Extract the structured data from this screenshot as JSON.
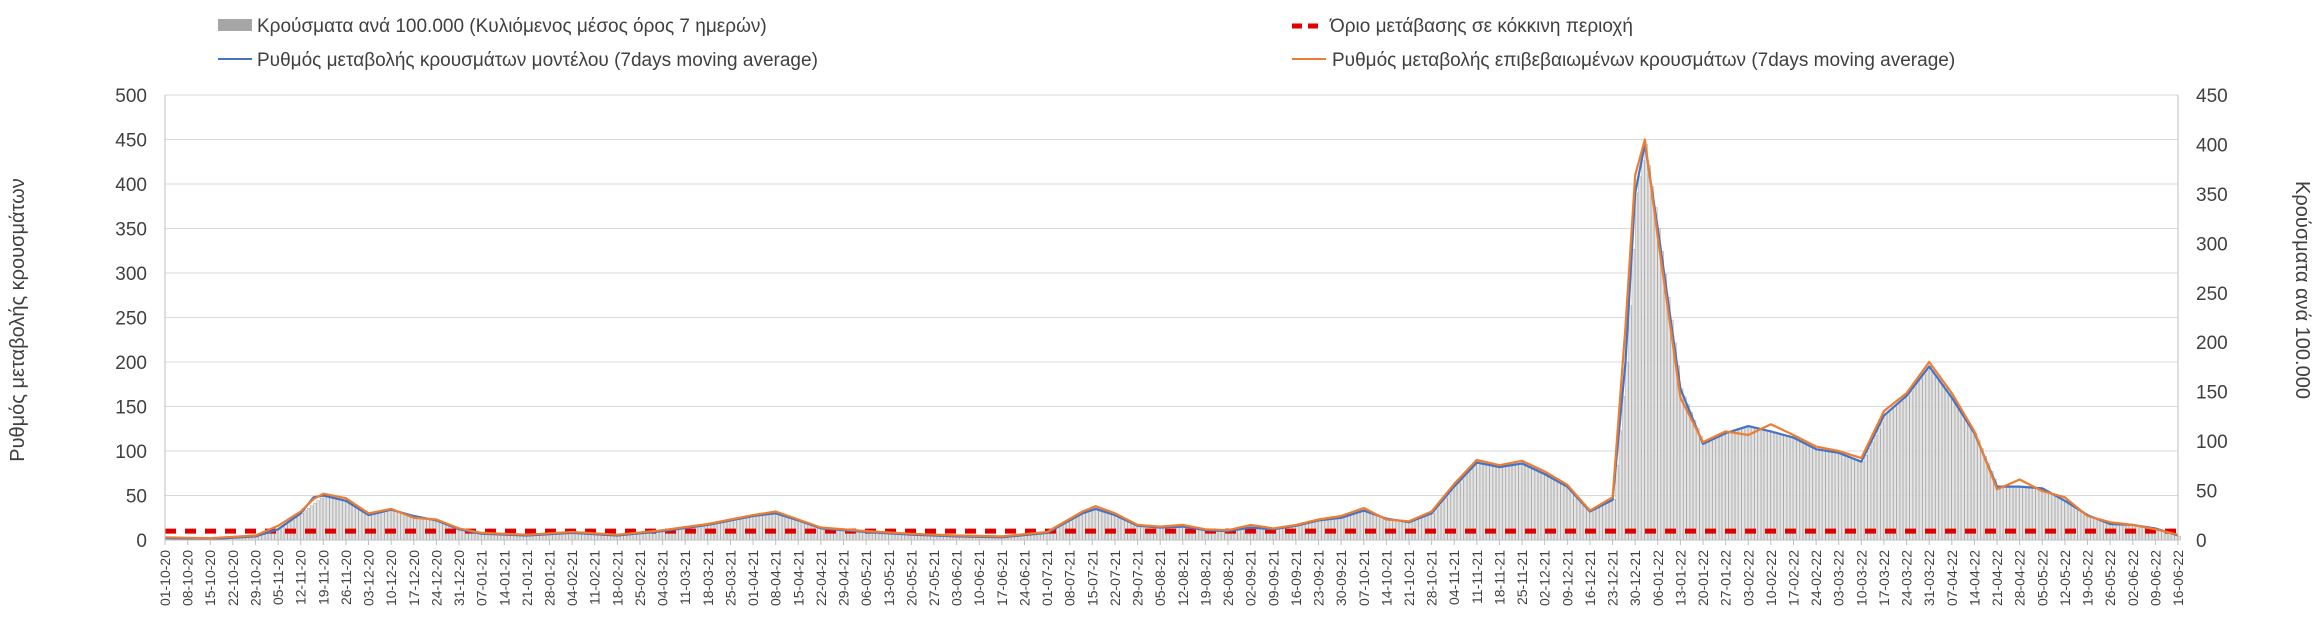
{
  "chart_data": {
    "type": "bar",
    "title": "",
    "ylabel": "Ρυθμός μεταβολής κρουσμάτων",
    "y2label": "Κρούσματα ανά 100.000",
    "ylim": [
      0,
      500
    ],
    "y2lim": [
      0,
      450
    ],
    "y_ticks": [
      "0",
      "50",
      "100",
      "150",
      "200",
      "250",
      "300",
      "350",
      "400",
      "450",
      "500"
    ],
    "y2_ticks": [
      "0",
      "50",
      "100",
      "150",
      "200",
      "250",
      "300",
      "350",
      "400",
      "450"
    ],
    "grid": "horizontal",
    "legend_position": "top",
    "legend": [
      {
        "key": "bars",
        "label": "Κρούσματα ανά 100.000 (Κυλιόμενος μέσος όρος 7 ημερών)",
        "color": "#a6a6a6"
      },
      {
        "key": "threshold",
        "label": "Όριο μετάβασης σε κόκκινη περιοχή",
        "color": "#e00000"
      },
      {
        "key": "model",
        "label": "Ρυθμός μεταβολής κρουσμάτων μοντέλου (7days moving average)",
        "color": "#4472c4"
      },
      {
        "key": "confirmed",
        "label": "Ρυθμός μεταβολής επιβεβαιωμένων κρουσμάτων (7days moving average)",
        "color": "#ed7d31"
      }
    ],
    "x_start": "2020-10-01",
    "x_end": "2022-06-16",
    "categories": [
      "01-10-20",
      "08-10-20",
      "15-10-20",
      "22-10-20",
      "29-10-20",
      "05-11-20",
      "12-11-20",
      "19-11-20",
      "26-11-20",
      "03-12-20",
      "10-12-20",
      "17-12-20",
      "24-12-20",
      "31-12-20",
      "07-01-21",
      "14-01-21",
      "21-01-21",
      "28-01-21",
      "04-02-21",
      "11-02-21",
      "18-02-21",
      "25-02-21",
      "04-03-21",
      "11-03-21",
      "18-03-21",
      "25-03-21",
      "01-04-21",
      "08-04-21",
      "15-04-21",
      "22-04-21",
      "29-04-21",
      "06-05-21",
      "13-05-21",
      "20-05-21",
      "27-05-21",
      "03-06-21",
      "10-06-21",
      "17-06-21",
      "24-06-21",
      "01-07-21",
      "08-07-21",
      "15-07-21",
      "22-07-21",
      "29-07-21",
      "05-08-21",
      "12-08-21",
      "19-08-21",
      "26-08-21",
      "02-09-21",
      "09-09-21",
      "16-09-21",
      "23-09-21",
      "30-09-21",
      "07-10-21",
      "14-10-21",
      "21-10-21",
      "28-10-21",
      "04-11-21",
      "11-11-21",
      "18-11-21",
      "25-11-21",
      "02-12-21",
      "09-12-21",
      "16-12-21",
      "23-12-21",
      "30-12-21",
      "06-01-22",
      "13-01-22",
      "20-01-22",
      "27-01-22",
      "03-02-22",
      "10-02-22",
      "17-02-22",
      "24-02-22",
      "03-03-22",
      "10-03-22",
      "17-03-22",
      "24-03-22",
      "31-03-22",
      "07-04-22",
      "14-04-22",
      "21-04-22",
      "28-04-22",
      "05-05-22",
      "12-05-22",
      "19-05-22",
      "26-05-22",
      "02-06-22",
      "09-06-22",
      "16-06-22"
    ],
    "threshold_value": 10,
    "series": [
      {
        "key": "model",
        "name": "Ρυθμός μεταβολής κρουσμάτων μοντέλου (7days moving average)",
        "axis": "left",
        "points": [
          [
            "2020-10-01",
            2
          ],
          [
            "2020-10-15",
            1
          ],
          [
            "2020-10-29",
            4
          ],
          [
            "2020-11-05",
            12
          ],
          [
            "2020-11-12",
            30
          ],
          [
            "2020-11-16",
            48
          ],
          [
            "2020-11-19",
            50
          ],
          [
            "2020-11-26",
            44
          ],
          [
            "2020-12-03",
            28
          ],
          [
            "2020-12-10",
            34
          ],
          [
            "2020-12-17",
            27
          ],
          [
            "2020-12-24",
            22
          ],
          [
            "2020-12-31",
            12
          ],
          [
            "2021-01-07",
            7
          ],
          [
            "2021-01-21",
            5
          ],
          [
            "2021-02-04",
            8
          ],
          [
            "2021-02-18",
            5
          ],
          [
            "2021-03-04",
            10
          ],
          [
            "2021-03-18",
            17
          ],
          [
            "2021-04-01",
            27
          ],
          [
            "2021-04-08",
            30
          ],
          [
            "2021-04-15",
            22
          ],
          [
            "2021-04-22",
            13
          ],
          [
            "2021-05-06",
            9
          ],
          [
            "2021-05-20",
            6
          ],
          [
            "2021-06-03",
            4
          ],
          [
            "2021-06-17",
            3
          ],
          [
            "2021-07-01",
            8
          ],
          [
            "2021-07-12",
            30
          ],
          [
            "2021-07-16",
            35
          ],
          [
            "2021-07-22",
            28
          ],
          [
            "2021-07-29",
            16
          ],
          [
            "2021-08-05",
            14
          ],
          [
            "2021-08-12",
            15
          ],
          [
            "2021-08-19",
            11
          ],
          [
            "2021-08-26",
            10
          ],
          [
            "2021-09-02",
            14
          ],
          [
            "2021-09-09",
            12
          ],
          [
            "2021-09-16",
            16
          ],
          [
            "2021-09-23",
            22
          ],
          [
            "2021-09-30",
            25
          ],
          [
            "2021-10-07",
            33
          ],
          [
            "2021-10-14",
            24
          ],
          [
            "2021-10-21",
            20
          ],
          [
            "2021-10-28",
            30
          ],
          [
            "2021-11-04",
            60
          ],
          [
            "2021-11-11",
            87
          ],
          [
            "2021-11-18",
            82
          ],
          [
            "2021-11-25",
            86
          ],
          [
            "2021-12-02",
            74
          ],
          [
            "2021-12-09",
            60
          ],
          [
            "2021-12-16",
            32
          ],
          [
            "2021-12-23",
            45
          ],
          [
            "2021-12-27",
            200
          ],
          [
            "2021-12-30",
            390
          ],
          [
            "2022-01-02",
            445
          ],
          [
            "2022-01-06",
            350
          ],
          [
            "2022-01-13",
            170
          ],
          [
            "2022-01-20",
            108
          ],
          [
            "2022-01-27",
            120
          ],
          [
            "2022-02-03",
            128
          ],
          [
            "2022-02-10",
            122
          ],
          [
            "2022-02-17",
            115
          ],
          [
            "2022-02-24",
            102
          ],
          [
            "2022-03-03",
            98
          ],
          [
            "2022-03-10",
            88
          ],
          [
            "2022-03-17",
            140
          ],
          [
            "2022-03-24",
            162
          ],
          [
            "2022-03-31",
            195
          ],
          [
            "2022-04-07",
            160
          ],
          [
            "2022-04-14",
            120
          ],
          [
            "2022-04-21",
            60
          ],
          [
            "2022-04-28",
            60
          ],
          [
            "2022-05-05",
            58
          ],
          [
            "2022-05-12",
            44
          ],
          [
            "2022-05-19",
            28
          ],
          [
            "2022-05-26",
            18
          ],
          [
            "2022-06-02",
            17
          ],
          [
            "2022-06-09",
            13
          ],
          [
            "2022-06-16",
            5
          ]
        ]
      },
      {
        "key": "confirmed",
        "name": "Ρυθμός μεταβολής επιβεβαιωμένων κρουσμάτων (7days moving average)",
        "axis": "left",
        "points": [
          [
            "2020-10-01",
            3
          ],
          [
            "2020-10-15",
            2
          ],
          [
            "2020-10-29",
            5
          ],
          [
            "2020-11-05",
            16
          ],
          [
            "2020-11-12",
            32
          ],
          [
            "2020-11-16",
            46
          ],
          [
            "2020-11-19",
            52
          ],
          [
            "2020-11-26",
            47
          ],
          [
            "2020-12-03",
            30
          ],
          [
            "2020-12-10",
            35
          ],
          [
            "2020-12-17",
            25
          ],
          [
            "2020-12-24",
            23
          ],
          [
            "2020-12-31",
            13
          ],
          [
            "2021-01-07",
            8
          ],
          [
            "2021-01-21",
            6
          ],
          [
            "2021-02-04",
            9
          ],
          [
            "2021-02-18",
            6
          ],
          [
            "2021-03-04",
            11
          ],
          [
            "2021-03-18",
            18
          ],
          [
            "2021-04-01",
            28
          ],
          [
            "2021-04-08",
            32
          ],
          [
            "2021-04-15",
            23
          ],
          [
            "2021-04-22",
            14
          ],
          [
            "2021-05-06",
            10
          ],
          [
            "2021-05-20",
            7
          ],
          [
            "2021-06-03",
            5
          ],
          [
            "2021-06-17",
            4
          ],
          [
            "2021-07-01",
            9
          ],
          [
            "2021-07-12",
            32
          ],
          [
            "2021-07-16",
            38
          ],
          [
            "2021-07-22",
            30
          ],
          [
            "2021-07-29",
            17
          ],
          [
            "2021-08-05",
            15
          ],
          [
            "2021-08-12",
            17
          ],
          [
            "2021-08-19",
            12
          ],
          [
            "2021-08-26",
            11
          ],
          [
            "2021-09-02",
            17
          ],
          [
            "2021-09-09",
            13
          ],
          [
            "2021-09-16",
            17
          ],
          [
            "2021-09-23",
            23
          ],
          [
            "2021-09-30",
            27
          ],
          [
            "2021-10-07",
            36
          ],
          [
            "2021-10-14",
            23
          ],
          [
            "2021-10-21",
            21
          ],
          [
            "2021-10-28",
            32
          ],
          [
            "2021-11-04",
            63
          ],
          [
            "2021-11-11",
            90
          ],
          [
            "2021-11-18",
            84
          ],
          [
            "2021-11-25",
            89
          ],
          [
            "2021-12-02",
            77
          ],
          [
            "2021-12-09",
            62
          ],
          [
            "2021-12-16",
            33
          ],
          [
            "2021-12-23",
            48
          ],
          [
            "2021-12-27",
            240
          ],
          [
            "2021-12-30",
            410
          ],
          [
            "2022-01-02",
            450
          ],
          [
            "2022-01-06",
            340
          ],
          [
            "2022-01-13",
            160
          ],
          [
            "2022-01-20",
            110
          ],
          [
            "2022-01-27",
            122
          ],
          [
            "2022-02-03",
            118
          ],
          [
            "2022-02-10",
            130
          ],
          [
            "2022-02-17",
            118
          ],
          [
            "2022-02-24",
            105
          ],
          [
            "2022-03-03",
            100
          ],
          [
            "2022-03-10",
            92
          ],
          [
            "2022-03-17",
            145
          ],
          [
            "2022-03-24",
            165
          ],
          [
            "2022-03-31",
            200
          ],
          [
            "2022-04-07",
            165
          ],
          [
            "2022-04-14",
            122
          ],
          [
            "2022-04-21",
            57
          ],
          [
            "2022-04-28",
            68
          ],
          [
            "2022-05-05",
            55
          ],
          [
            "2022-05-12",
            48
          ],
          [
            "2022-05-19",
            27
          ],
          [
            "2022-05-26",
            20
          ],
          [
            "2022-06-02",
            17
          ],
          [
            "2022-06-09",
            12
          ],
          [
            "2022-06-16",
            6
          ]
        ]
      },
      {
        "key": "bars",
        "name": "Κρούσματα ανά 100.000 (Κυλιόμενος μέσος όρος 7 ημερών)",
        "axis": "right",
        "points": [
          [
            "2020-10-01",
            2
          ],
          [
            "2020-10-15",
            1
          ],
          [
            "2020-10-29",
            3
          ],
          [
            "2020-11-05",
            11
          ],
          [
            "2020-11-12",
            27
          ],
          [
            "2020-11-19",
            45
          ],
          [
            "2020-11-26",
            40
          ],
          [
            "2020-12-03",
            25
          ],
          [
            "2020-12-10",
            31
          ],
          [
            "2020-12-17",
            24
          ],
          [
            "2020-12-24",
            20
          ],
          [
            "2020-12-31",
            11
          ],
          [
            "2021-01-07",
            6
          ],
          [
            "2021-01-21",
            4
          ],
          [
            "2021-02-04",
            7
          ],
          [
            "2021-02-18",
            4
          ],
          [
            "2021-03-04",
            9
          ],
          [
            "2021-03-18",
            15
          ],
          [
            "2021-04-01",
            24
          ],
          [
            "2021-04-08",
            27
          ],
          [
            "2021-04-15",
            20
          ],
          [
            "2021-04-22",
            12
          ],
          [
            "2021-05-06",
            8
          ],
          [
            "2021-05-20",
            5
          ],
          [
            "2021-06-03",
            4
          ],
          [
            "2021-06-17",
            2
          ],
          [
            "2021-07-01",
            7
          ],
          [
            "2021-07-12",
            27
          ],
          [
            "2021-07-16",
            32
          ],
          [
            "2021-07-22",
            25
          ],
          [
            "2021-07-29",
            14
          ],
          [
            "2021-08-05",
            13
          ],
          [
            "2021-08-12",
            14
          ],
          [
            "2021-08-19",
            10
          ],
          [
            "2021-08-26",
            9
          ],
          [
            "2021-09-02",
            13
          ],
          [
            "2021-09-09",
            11
          ],
          [
            "2021-09-16",
            14
          ],
          [
            "2021-09-23",
            20
          ],
          [
            "2021-09-30",
            23
          ],
          [
            "2021-10-07",
            30
          ],
          [
            "2021-10-14",
            22
          ],
          [
            "2021-10-21",
            18
          ],
          [
            "2021-10-28",
            27
          ],
          [
            "2021-11-04",
            54
          ],
          [
            "2021-11-11",
            79
          ],
          [
            "2021-11-18",
            74
          ],
          [
            "2021-11-25",
            78
          ],
          [
            "2021-12-02",
            67
          ],
          [
            "2021-12-09",
            54
          ],
          [
            "2021-12-16",
            29
          ],
          [
            "2021-12-23",
            41
          ],
          [
            "2021-12-27",
            180
          ],
          [
            "2021-12-30",
            351
          ],
          [
            "2022-01-02",
            400
          ],
          [
            "2022-01-06",
            315
          ],
          [
            "2022-01-13",
            153
          ],
          [
            "2022-01-20",
            97
          ],
          [
            "2022-01-27",
            108
          ],
          [
            "2022-02-03",
            115
          ],
          [
            "2022-02-10",
            110
          ],
          [
            "2022-02-17",
            104
          ],
          [
            "2022-02-24",
            92
          ],
          [
            "2022-03-03",
            88
          ],
          [
            "2022-03-10",
            79
          ],
          [
            "2022-03-17",
            126
          ],
          [
            "2022-03-24",
            146
          ],
          [
            "2022-03-31",
            176
          ],
          [
            "2022-04-07",
            144
          ],
          [
            "2022-04-14",
            108
          ],
          [
            "2022-04-21",
            54
          ],
          [
            "2022-04-28",
            54
          ],
          [
            "2022-05-05",
            52
          ],
          [
            "2022-05-12",
            40
          ],
          [
            "2022-05-19",
            25
          ],
          [
            "2022-05-26",
            16
          ],
          [
            "2022-06-02",
            15
          ],
          [
            "2022-06-09",
            12
          ],
          [
            "2022-06-16",
            4
          ]
        ]
      }
    ]
  }
}
